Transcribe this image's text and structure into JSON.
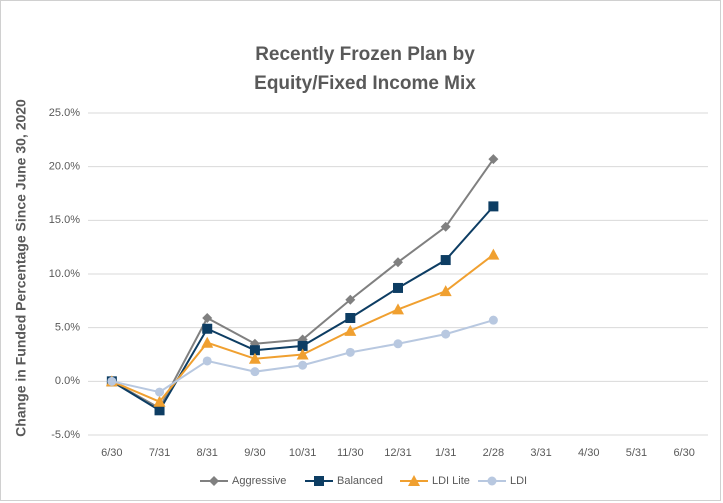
{
  "chart_data": {
    "type": "line",
    "title": [
      "Recently Frozen Plan by",
      "Equity/Fixed Income Mix"
    ],
    "y_label": "Change in Funded Percentage Since June 30, 2020",
    "categories": [
      "6/30",
      "7/31",
      "8/31",
      "9/30",
      "10/31",
      "11/30",
      "12/31",
      "1/31",
      "2/28",
      "3/31",
      "4/30",
      "5/31",
      "6/30"
    ],
    "series": [
      {
        "name": "Aggressive",
        "color": "#808080",
        "marker": "diamond",
        "values": [
          0,
          -2.5,
          5.9,
          3.5,
          3.9,
          7.6,
          11.1,
          14.4,
          20.7,
          null,
          null,
          null,
          null
        ]
      },
      {
        "name": "Balanced",
        "color": "#0d3d63",
        "marker": "square",
        "values": [
          0,
          -2.7,
          4.9,
          2.9,
          3.3,
          5.9,
          8.7,
          11.3,
          16.3,
          null,
          null,
          null,
          null
        ]
      },
      {
        "name": "LDI Lite",
        "color": "#f0a030",
        "marker": "triangle",
        "values": [
          0,
          -1.9,
          3.6,
          2.1,
          2.5,
          4.7,
          6.7,
          8.4,
          11.8,
          null,
          null,
          null,
          null
        ]
      },
      {
        "name": "LDI",
        "color": "#b8c8e0",
        "marker": "circle",
        "values": [
          0,
          -1.0,
          1.9,
          0.9,
          1.5,
          2.7,
          3.5,
          4.4,
          5.7,
          null,
          null,
          null,
          null
        ]
      }
    ],
    "ylim": [
      -5,
      25
    ],
    "yticks": [
      {
        "value": -5,
        "label": "-5.0%"
      },
      {
        "value": 0,
        "label": "0.0%"
      },
      {
        "value": 5,
        "label": "5.0%"
      },
      {
        "value": 10,
        "label": "10.0%"
      },
      {
        "value": 15,
        "label": "15.0%"
      },
      {
        "value": 20,
        "label": "20.0%"
      },
      {
        "value": 25,
        "label": "25.0%"
      }
    ],
    "grid": true,
    "legend": "bottom"
  }
}
